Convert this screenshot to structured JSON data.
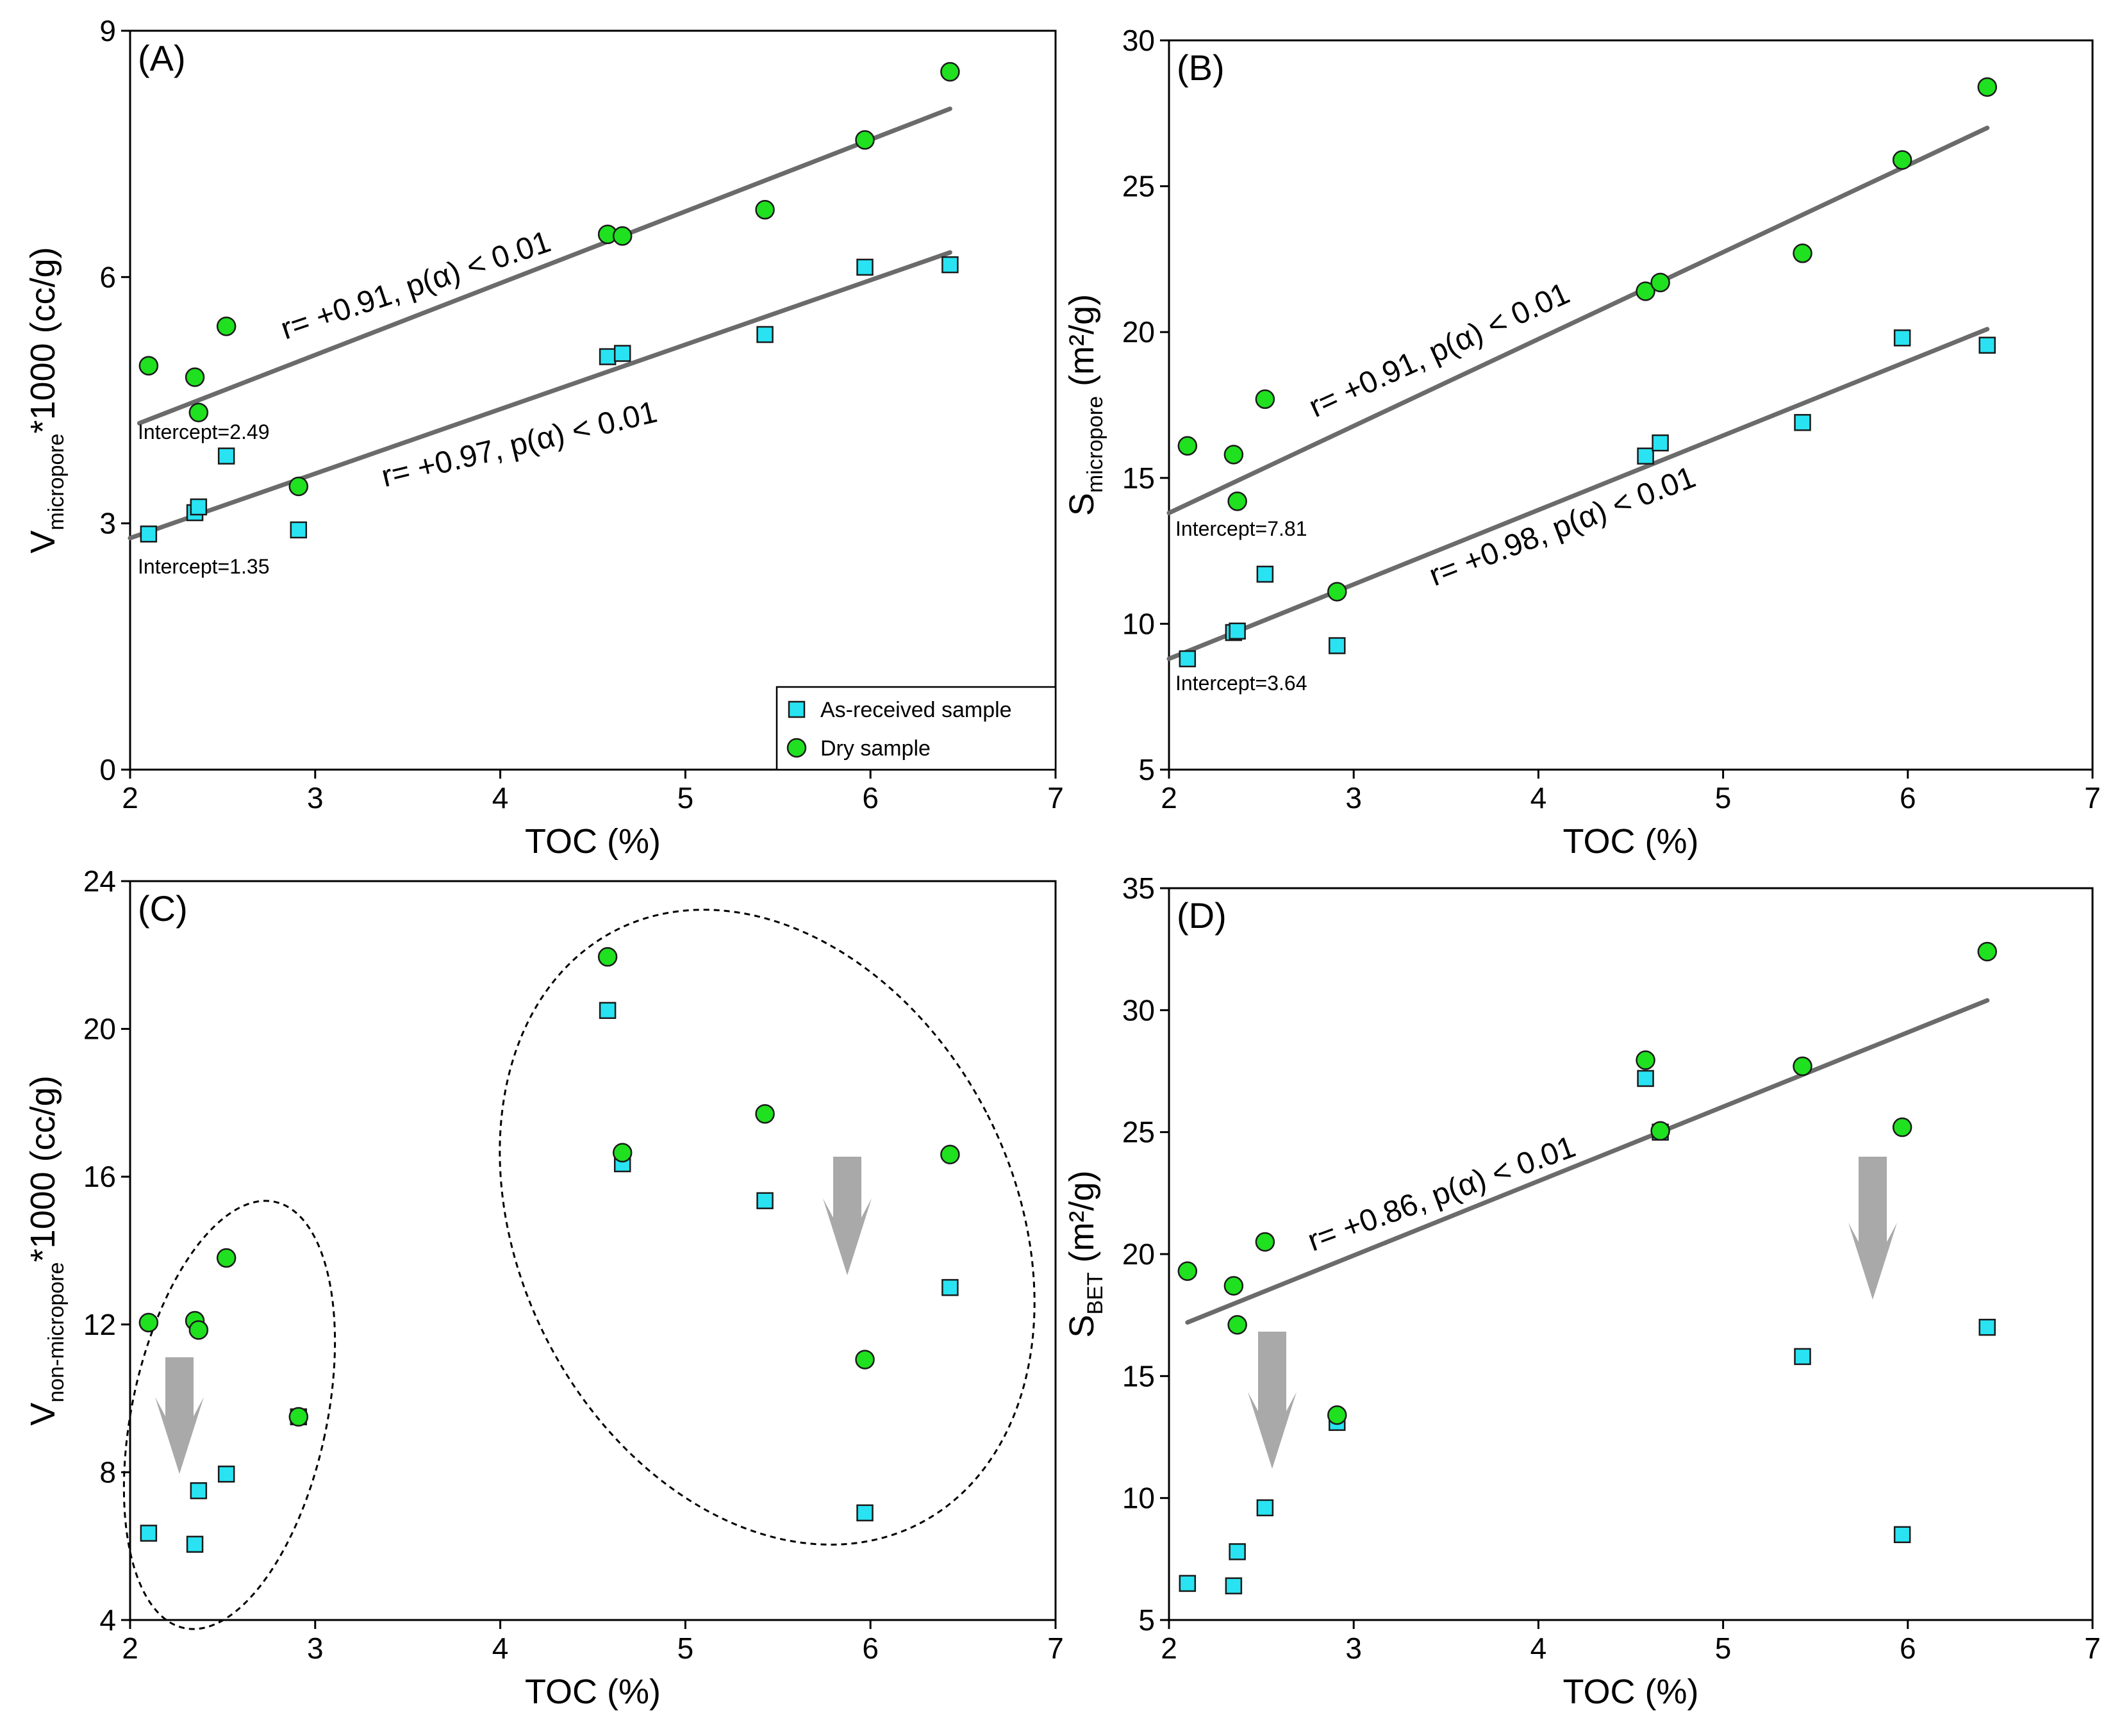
{
  "colors": {
    "as_received": "#29e3f2",
    "dry": "#1fe11f",
    "marker_edge": "#1a1a1a",
    "fit_line": "#6b6b6b",
    "arrow": "#a9a9a9",
    "axis": "#000000"
  },
  "legend": {
    "as_received_label": "As-received sample",
    "dry_label": "Dry sample",
    "placement": "bottom-right of panel A"
  },
  "chart_data": [
    {
      "id": "A",
      "type": "scatter",
      "panel_tag": "(A)",
      "xlabel": "TOC (%)",
      "ylabel_main": "V",
      "ylabel_sub": "micropore",
      "ylabel_rest": "*1000 (cc/g)",
      "xlim": [
        2,
        7
      ],
      "ylim": [
        0,
        9
      ],
      "xticks": [
        "2",
        "3",
        "4",
        "5",
        "6",
        "7"
      ],
      "yticks": [
        "0",
        "3",
        "6",
        "9"
      ],
      "series": [
        {
          "name": "As-received sample",
          "marker": "square",
          "x": [
            2.1,
            2.35,
            2.37,
            2.52,
            2.91,
            4.58,
            4.66,
            5.43,
            5.97,
            6.43
          ],
          "y": [
            2.87,
            3.13,
            3.2,
            3.82,
            2.92,
            5.03,
            5.07,
            5.3,
            6.12,
            6.15
          ]
        },
        {
          "name": "Dry sample",
          "marker": "circle",
          "x": [
            2.1,
            2.35,
            2.37,
            2.52,
            2.91,
            4.58,
            4.66,
            5.43,
            5.97,
            6.43
          ],
          "y": [
            4.92,
            4.78,
            4.35,
            5.4,
            3.45,
            6.52,
            6.5,
            6.82,
            7.67,
            8.5
          ]
        }
      ],
      "fits": [
        {
          "x": [
            2.05,
            6.43
          ],
          "y": [
            4.22,
            8.05
          ],
          "label": "r= +0.91, p(α) < 0.01",
          "intercept_label": "Intercept=2.49"
        },
        {
          "x": [
            2.0,
            6.43
          ],
          "y": [
            2.82,
            6.3
          ],
          "label": "r= +0.97, p(α) < 0.01",
          "intercept_label": "Intercept=1.35"
        }
      ]
    },
    {
      "id": "B",
      "type": "scatter",
      "panel_tag": "(B)",
      "xlabel": "TOC (%)",
      "ylabel_main": "S",
      "ylabel_sub": "micropore",
      "ylabel_rest": " (m²/g)",
      "xlim": [
        2,
        7
      ],
      "ylim": [
        5,
        30
      ],
      "xticks": [
        "2",
        "3",
        "4",
        "5",
        "6",
        "7"
      ],
      "yticks": [
        "5",
        "10",
        "15",
        "20",
        "25",
        "30"
      ],
      "series": [
        {
          "name": "As-received sample",
          "marker": "square",
          "x": [
            2.1,
            2.35,
            2.37,
            2.52,
            2.91,
            4.58,
            4.66,
            5.43,
            5.97,
            6.43
          ],
          "y": [
            8.8,
            9.7,
            9.75,
            11.7,
            9.25,
            15.75,
            16.2,
            16.9,
            19.8,
            19.55
          ]
        },
        {
          "name": "Dry sample",
          "marker": "circle",
          "x": [
            2.1,
            2.35,
            2.37,
            2.52,
            2.91,
            4.58,
            4.66,
            5.43,
            5.97,
            6.43
          ],
          "y": [
            16.1,
            15.8,
            14.2,
            17.7,
            11.1,
            21.4,
            21.7,
            22.7,
            25.9,
            28.4
          ]
        }
      ],
      "fits": [
        {
          "x": [
            2.0,
            6.43
          ],
          "y": [
            13.8,
            27.0
          ],
          "label": "r= +0.91, p(α) < 0.01",
          "intercept_label": "Intercept=7.81"
        },
        {
          "x": [
            2.0,
            6.43
          ],
          "y": [
            8.8,
            20.1
          ],
          "label": "r= +0.98, p(α) < 0.01",
          "intercept_label": "Intercept=3.64"
        }
      ]
    },
    {
      "id": "C",
      "type": "scatter",
      "panel_tag": "(C)",
      "xlabel": "TOC (%)",
      "ylabel_main": "V",
      "ylabel_sub": "non-micropore",
      "ylabel_rest": "*1000 (cc/g)",
      "xlim": [
        2,
        7
      ],
      "ylim": [
        4,
        24
      ],
      "xticks": [
        "2",
        "3",
        "4",
        "5",
        "6",
        "7"
      ],
      "yticks": [
        "4",
        "8",
        "12",
        "16",
        "20",
        "24"
      ],
      "series": [
        {
          "name": "As-received sample",
          "marker": "square",
          "x": [
            2.1,
            2.35,
            2.37,
            2.52,
            2.91,
            4.58,
            4.66,
            5.43,
            5.97,
            6.43
          ],
          "y": [
            6.35,
            6.05,
            7.5,
            7.95,
            9.5,
            20.5,
            16.35,
            15.35,
            6.9,
            13.0
          ]
        },
        {
          "name": "Dry sample",
          "marker": "circle",
          "x": [
            2.1,
            2.35,
            2.37,
            2.52,
            2.91,
            4.58,
            4.66,
            5.43,
            5.97,
            6.43
          ],
          "y": [
            12.05,
            12.1,
            11.85,
            13.8,
            9.5,
            21.95,
            16.65,
            17.7,
            11.05,
            16.6
          ]
        }
      ],
      "fits": []
    },
    {
      "id": "D",
      "type": "scatter",
      "panel_tag": "(D)",
      "xlabel": "TOC (%)",
      "ylabel_main": "S",
      "ylabel_sub": "BET",
      "ylabel_rest": " (m²/g)",
      "xlim": [
        2,
        7
      ],
      "ylim": [
        5,
        35
      ],
      "xticks": [
        "2",
        "3",
        "4",
        "5",
        "6",
        "7"
      ],
      "yticks": [
        "5",
        "10",
        "15",
        "20",
        "25",
        "30",
        "35"
      ],
      "series": [
        {
          "name": "As-received sample",
          "marker": "square",
          "x": [
            2.1,
            2.35,
            2.37,
            2.52,
            2.91,
            4.58,
            4.66,
            5.43,
            5.97,
            6.43
          ],
          "y": [
            6.5,
            6.4,
            7.8,
            9.6,
            13.1,
            27.2,
            25.0,
            15.8,
            8.5,
            17.0
          ]
        },
        {
          "name": "Dry sample",
          "marker": "circle",
          "x": [
            2.1,
            2.35,
            2.37,
            2.52,
            2.91,
            4.58,
            4.66,
            5.43,
            5.97,
            6.43
          ],
          "y": [
            19.3,
            18.7,
            17.1,
            20.5,
            13.4,
            27.95,
            25.05,
            27.7,
            25.2,
            32.4
          ]
        }
      ],
      "fits": [
        {
          "x": [
            2.1,
            6.43
          ],
          "y": [
            17.2,
            30.4
          ],
          "label": "r= +0.86, p(α) < 0.01",
          "intercept_label": ""
        }
      ]
    }
  ]
}
